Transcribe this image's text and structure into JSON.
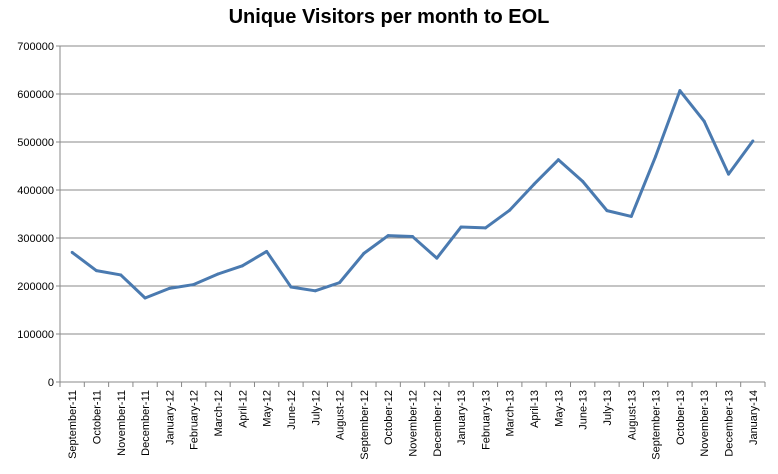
{
  "chart_data": {
    "type": "line",
    "title": "Unique Visitors per month to EOL",
    "xlabel": "",
    "ylabel": "",
    "ylim": [
      0,
      700000
    ],
    "yticks": [
      0,
      100000,
      200000,
      300000,
      400000,
      500000,
      600000,
      700000
    ],
    "ytick_labels": [
      "0",
      "100000",
      "200000",
      "300000",
      "400000",
      "500000",
      "600000",
      "700000"
    ],
    "grid": true,
    "legend": "none",
    "line_color": "#4a7ab0",
    "categories": [
      "September-11",
      "October-11",
      "November-11",
      "December-11",
      "January-12",
      "February-12",
      "March-12",
      "April-12",
      "May-12",
      "June-12",
      "July-12",
      "August-12",
      "September-12",
      "October-12",
      "November-12",
      "December-12",
      "January-13",
      "February-13",
      "March-13",
      "April-13",
      "May-13",
      "June-13",
      "July-13",
      "August-13",
      "September-13",
      "October-13",
      "November-13",
      "December-13",
      "January-14"
    ],
    "series": [
      {
        "values": [
          270000,
          232000,
          223000,
          175000,
          195000,
          203000,
          225000,
          242000,
          272000,
          198000,
          190000,
          207000,
          268000,
          305000,
          303000,
          258000,
          323000,
          321000,
          358000,
          412000,
          463000,
          418000,
          357000,
          345000,
          470000,
          607000,
          543000,
          433000,
          502000
        ]
      }
    ]
  }
}
